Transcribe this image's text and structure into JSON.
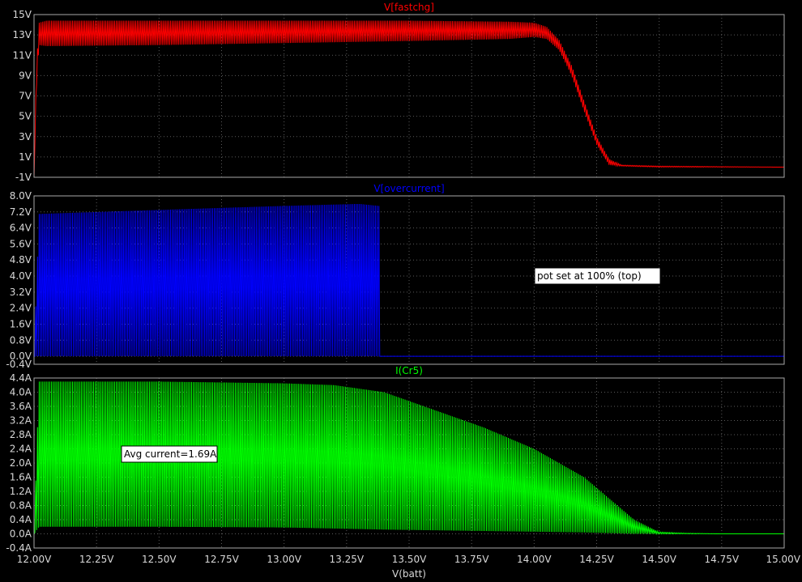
{
  "chart_data": {
    "type": "line",
    "xlabel": "V(batt)",
    "xlim": [
      12.0,
      15.0
    ],
    "x_ticks": [
      "12.00V",
      "12.25V",
      "12.50V",
      "12.75V",
      "13.00V",
      "13.25V",
      "13.50V",
      "13.75V",
      "14.00V",
      "14.25V",
      "14.50V",
      "14.75V",
      "15.00V"
    ],
    "grid": true,
    "panels": [
      {
        "title": "V[fastchg]",
        "color": "#ff0000",
        "ylim": [
          -1,
          15
        ],
        "y_ticks": [
          "15V",
          "13V",
          "11V",
          "9V",
          "7V",
          "5V",
          "3V",
          "1V",
          "-1V"
        ],
        "series": {
          "x": [
            12.0,
            12.01,
            12.02,
            12.05,
            12.5,
            13.0,
            13.5,
            13.9,
            14.0,
            14.05,
            14.1,
            14.15,
            14.2,
            14.25,
            14.3,
            14.35,
            14.5,
            15.0
          ],
          "y_max": [
            -1.0,
            10.0,
            14.2,
            14.4,
            14.4,
            14.4,
            14.4,
            14.3,
            14.2,
            13.8,
            12.5,
            10.0,
            6.5,
            3.0,
            0.8,
            0.2,
            0.1,
            0.0
          ],
          "y_min": [
            -1.0,
            8.0,
            12.0,
            11.9,
            12.0,
            12.2,
            12.4,
            12.6,
            12.8,
            12.6,
            11.5,
            9.0,
            5.5,
            2.2,
            0.2,
            0.1,
            0.0,
            0.0
          ]
        }
      },
      {
        "title": "V[overcurrent]",
        "color": "#0000ff",
        "ylim": [
          -0.4,
          8.0
        ],
        "y_ticks": [
          "8.0V",
          "7.2V",
          "6.4V",
          "5.6V",
          "4.8V",
          "4.0V",
          "3.2V",
          "2.4V",
          "1.6V",
          "0.8V",
          "0.0V",
          "-0.4V"
        ],
        "series": {
          "x": [
            12.0,
            12.02,
            12.5,
            13.0,
            13.3,
            13.38,
            13.385,
            15.0
          ],
          "y_max": [
            0.0,
            7.1,
            7.3,
            7.5,
            7.6,
            7.5,
            0.0,
            0.0
          ],
          "y_min": [
            0.0,
            0.0,
            0.0,
            0.0,
            0.0,
            0.0,
            0.0,
            0.0
          ]
        },
        "annotation": "pot set at 100% (top)"
      },
      {
        "title": "I(Cr5)",
        "color": "#00ff00",
        "ylim": [
          -0.4,
          4.4
        ],
        "y_ticks": [
          "4.4A",
          "4.0A",
          "3.6A",
          "3.2A",
          "2.8A",
          "2.4A",
          "2.0A",
          "1.6A",
          "1.2A",
          "0.8A",
          "0.4A",
          "0.0A",
          "-0.4A"
        ],
        "series": {
          "x": [
            12.0,
            12.02,
            12.5,
            13.0,
            13.2,
            13.4,
            13.6,
            13.8,
            14.0,
            14.2,
            14.3,
            14.4,
            14.5,
            14.6,
            14.75,
            15.0
          ],
          "y_max": [
            0.0,
            4.3,
            4.3,
            4.25,
            4.2,
            4.0,
            3.5,
            3.0,
            2.4,
            1.6,
            1.0,
            0.4,
            0.05,
            0.02,
            0.0,
            0.0
          ],
          "y_min": [
            0.0,
            0.2,
            0.2,
            0.18,
            0.15,
            0.12,
            0.1,
            0.08,
            0.06,
            0.04,
            0.02,
            0.0,
            0.0,
            0.0,
            0.0,
            0.0
          ]
        },
        "annotation": "Avg current=1.69A"
      }
    ]
  }
}
